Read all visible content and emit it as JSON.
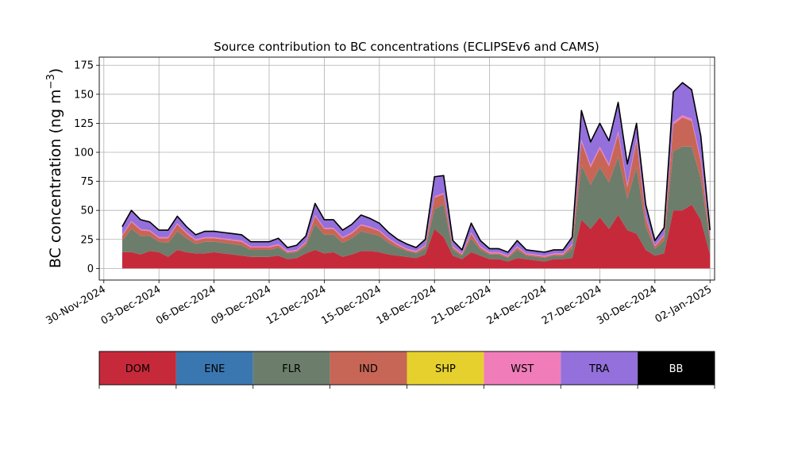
{
  "chart_data": {
    "type": "area",
    "title": "Source contribution to BC concentrations (ECLIPSEv6 and CAMS)",
    "ylabel": "BC concentration (ng m",
    "ylabel_exponent": "−3",
    "ylabel_close": ")",
    "xlabel": "",
    "ylim": [
      -10,
      182
    ],
    "xlim": [
      "2024-11-29T18:00",
      "2025-01-02T06:00"
    ],
    "yticks": [
      0,
      25,
      50,
      75,
      100,
      125,
      150,
      175
    ],
    "xticks": [
      "30-Nov-2024",
      "03-Dec-2024",
      "06-Dec-2024",
      "09-Dec-2024",
      "12-Dec-2024",
      "15-Dec-2024",
      "18-Dec-2024",
      "21-Dec-2024",
      "24-Dec-2024",
      "27-Dec-2024",
      "30-Dec-2024",
      "02-Jan-2025"
    ],
    "grid": true,
    "stacked": true,
    "x": [
      "2024-12-01",
      "2024-12-01T12:00",
      "2024-12-02",
      "2024-12-02T12:00",
      "2024-12-03",
      "2024-12-03T12:00",
      "2024-12-04",
      "2024-12-04T12:00",
      "2024-12-05",
      "2024-12-05T12:00",
      "2024-12-06",
      "2024-12-06T12:00",
      "2024-12-07",
      "2024-12-07T12:00",
      "2024-12-08",
      "2024-12-08T12:00",
      "2024-12-09",
      "2024-12-09T12:00",
      "2024-12-10",
      "2024-12-10T12:00",
      "2024-12-11",
      "2024-12-11T12:00",
      "2024-12-12",
      "2024-12-12T12:00",
      "2024-12-13",
      "2024-12-13T12:00",
      "2024-12-14",
      "2024-12-14T12:00",
      "2024-12-15",
      "2024-12-15T12:00",
      "2024-12-16",
      "2024-12-16T12:00",
      "2024-12-17",
      "2024-12-17T12:00",
      "2024-12-18",
      "2024-12-18T12:00",
      "2024-12-19",
      "2024-12-19T12:00",
      "2024-12-20",
      "2024-12-20T12:00",
      "2024-12-21",
      "2024-12-21T12:00",
      "2024-12-22",
      "2024-12-22T12:00",
      "2024-12-23",
      "2024-12-23T12:00",
      "2024-12-24",
      "2024-12-24T12:00",
      "2024-12-25",
      "2024-12-25T12:00",
      "2024-12-26",
      "2024-12-26T12:00",
      "2024-12-27",
      "2024-12-27T12:00",
      "2024-12-28",
      "2024-12-28T12:00",
      "2024-12-29",
      "2024-12-29T12:00",
      "2024-12-30",
      "2024-12-30T12:00",
      "2024-12-31",
      "2024-12-31T12:00",
      "2025-01-01",
      "2025-01-01T12:00",
      "2025-01-02"
    ],
    "series": [
      {
        "name": "DOM",
        "color": "#c62a3a",
        "values": [
          14,
          14,
          12,
          15,
          14,
          10,
          16,
          14,
          13,
          13,
          14,
          13,
          12,
          11,
          10,
          10,
          10,
          11,
          8,
          9,
          13,
          16,
          13,
          14,
          10,
          12,
          15,
          15,
          14,
          12,
          11,
          10,
          9,
          12,
          34,
          27,
          11,
          8,
          14,
          11,
          8,
          8,
          6,
          9,
          8,
          7,
          6,
          8,
          8,
          9,
          42,
          34,
          44,
          34,
          46,
          33,
          30,
          16,
          11,
          13,
          50,
          50,
          55,
          42,
          12
        ]
      },
      {
        "name": "ENE",
        "color": "#3a77b0",
        "values": [
          0,
          0,
          0,
          0,
          0,
          0,
          0,
          0,
          0,
          0,
          0,
          0,
          0,
          0,
          0,
          0,
          0,
          0,
          0,
          0,
          0,
          0,
          0,
          0,
          0,
          0,
          0,
          0,
          0,
          0,
          0,
          0,
          0,
          0,
          0,
          0,
          0,
          0,
          0,
          0,
          0,
          0,
          0,
          0,
          0,
          0,
          0,
          0,
          0,
          0,
          0,
          0,
          0,
          0,
          0,
          0,
          0,
          0,
          0,
          0,
          0,
          0,
          0,
          0,
          0
        ]
      },
      {
        "name": "FLR",
        "color": "#6c7d6c",
        "values": [
          10,
          20,
          16,
          13,
          9,
          12,
          16,
          12,
          8,
          10,
          9,
          9,
          9,
          9,
          6,
          6,
          6,
          7,
          5,
          5,
          7,
          22,
          16,
          15,
          12,
          14,
          17,
          15,
          14,
          10,
          7,
          5,
          4,
          5,
          17,
          28,
          5,
          3,
          12,
          5,
          4,
          4,
          3,
          7,
          3,
          3,
          3,
          3,
          3,
          8,
          47,
          38,
          43,
          40,
          50,
          27,
          57,
          20,
          6,
          11,
          51,
          55,
          50,
          35,
          12
        ]
      },
      {
        "name": "IND",
        "color": "#c76656",
        "values": [
          4,
          6,
          5,
          4,
          3,
          4,
          6,
          4,
          3,
          3,
          3,
          3,
          3,
          3,
          2,
          2,
          2,
          2,
          1,
          1,
          2,
          7,
          5,
          5,
          4,
          4,
          5,
          5,
          4,
          3,
          2,
          1,
          1,
          2,
          10,
          9,
          2,
          1,
          4,
          2,
          1,
          1,
          1,
          2,
          1,
          1,
          1,
          1,
          1,
          3,
          20,
          15,
          16,
          14,
          20,
          10,
          23,
          8,
          2,
          4,
          23,
          25,
          22,
          15,
          3
        ]
      },
      {
        "name": "SHP",
        "color": "#e6d02e",
        "values": [
          0,
          0,
          0,
          0,
          0,
          0,
          0,
          0,
          0,
          0,
          0,
          0,
          0,
          0,
          0,
          0,
          0,
          0,
          0,
          0,
          0,
          0,
          0,
          0,
          0,
          0,
          0,
          0,
          0,
          0,
          0,
          0,
          0,
          0,
          0,
          0,
          0,
          0,
          0,
          0,
          0,
          0,
          0,
          0,
          0,
          0,
          0,
          0,
          0,
          0,
          0,
          0,
          0,
          0,
          0,
          0,
          0,
          0,
          0,
          0,
          0,
          0,
          0,
          0,
          0
        ]
      },
      {
        "name": "WST",
        "color": "#f07dba",
        "values": [
          1,
          1,
          1,
          1,
          1,
          1,
          1,
          1,
          1,
          1,
          1,
          1,
          1,
          1,
          1,
          1,
          1,
          1,
          1,
          1,
          1,
          1,
          1,
          1,
          1,
          1,
          1,
          1,
          1,
          1,
          1,
          1,
          1,
          1,
          1,
          1,
          1,
          1,
          1,
          1,
          1,
          1,
          1,
          1,
          1,
          1,
          1,
          1,
          1,
          1,
          2,
          2,
          2,
          2,
          2,
          2,
          2,
          1,
          1,
          1,
          2,
          2,
          2,
          2,
          1
        ]
      },
      {
        "name": "TRA",
        "color": "#9370db",
        "values": [
          7,
          9,
          8,
          7,
          6,
          6,
          6,
          5,
          4,
          5,
          5,
          5,
          5,
          5,
          4,
          4,
          4,
          5,
          3,
          4,
          5,
          10,
          7,
          7,
          6,
          7,
          8,
          7,
          6,
          5,
          4,
          4,
          3,
          5,
          17,
          15,
          5,
          3,
          8,
          5,
          3,
          3,
          3,
          5,
          3,
          3,
          3,
          3,
          3,
          6,
          25,
          20,
          20,
          20,
          25,
          18,
          13,
          10,
          4,
          6,
          26,
          28,
          25,
          20,
          5
        ]
      },
      {
        "name": "BB",
        "color": "#000000",
        "values": [
          0,
          0,
          0,
          0,
          0,
          0,
          0,
          0,
          0,
          0,
          0,
          0,
          0,
          0,
          0,
          0,
          0,
          0,
          0,
          0,
          0,
          0,
          0,
          0,
          0,
          0,
          0,
          0,
          0,
          0,
          0,
          0,
          0,
          0,
          0,
          0,
          0,
          0,
          0,
          0,
          0,
          0,
          0,
          0,
          0,
          0,
          0,
          0,
          0,
          0,
          0,
          0,
          0,
          0,
          0,
          0,
          0,
          0,
          0,
          0,
          0,
          0,
          0,
          0,
          0
        ]
      }
    ],
    "legend": {
      "placement": "below",
      "entries": [
        {
          "name": "DOM",
          "color": "#c62a3a",
          "text_color": "#000000"
        },
        {
          "name": "ENE",
          "color": "#3a77b0",
          "text_color": "#000000"
        },
        {
          "name": "FLR",
          "color": "#6c7d6c",
          "text_color": "#000000"
        },
        {
          "name": "IND",
          "color": "#c76656",
          "text_color": "#000000"
        },
        {
          "name": "SHP",
          "color": "#e6d02e",
          "text_color": "#000000"
        },
        {
          "name": "WST",
          "color": "#f07dba",
          "text_color": "#000000"
        },
        {
          "name": "TRA",
          "color": "#9370db",
          "text_color": "#000000"
        },
        {
          "name": "BB",
          "color": "#000000",
          "text_color": "#ffffff"
        }
      ]
    }
  }
}
